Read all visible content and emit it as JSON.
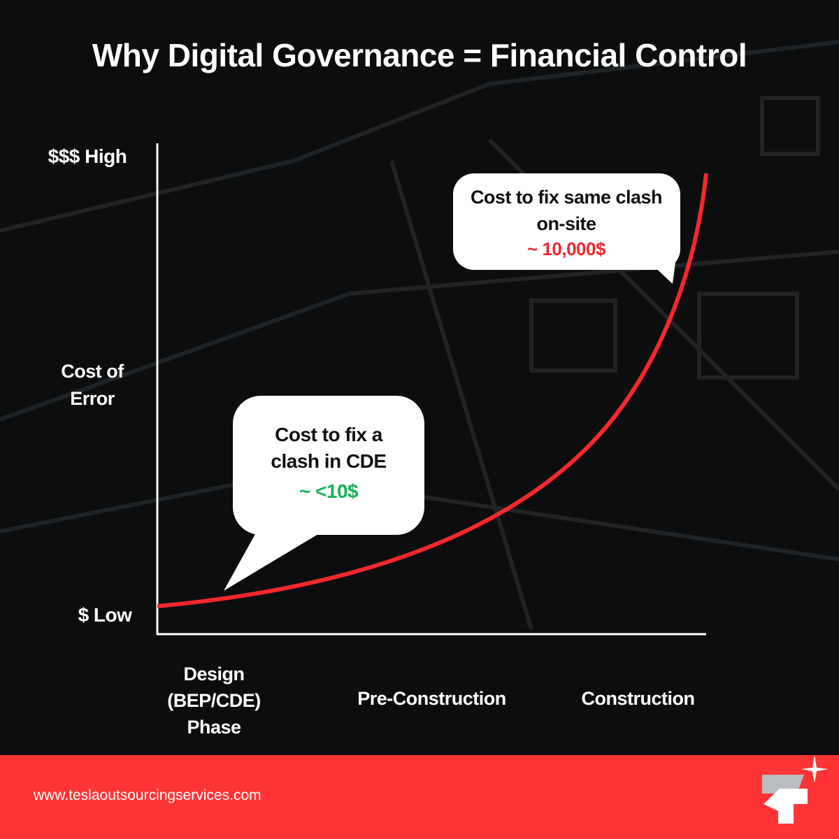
{
  "header": {
    "title": "Why Digital Governance = Financial Control"
  },
  "y_axis": {
    "high": "$$$ High",
    "label": "Cost of Error",
    "low": "$ Low"
  },
  "x_axis": {
    "phases": [
      "Design (BEP/CDE) Phase",
      "Pre-Construction",
      "Construction"
    ]
  },
  "callouts": [
    {
      "text": "Cost to fix a clash in CDE",
      "cost": "~ <10$"
    },
    {
      "text": "Cost to fix same clash on-site",
      "cost": "~ 10,000$"
    }
  ],
  "footer": {
    "url": "www.teslaoutsourcingservices.com"
  }
}
